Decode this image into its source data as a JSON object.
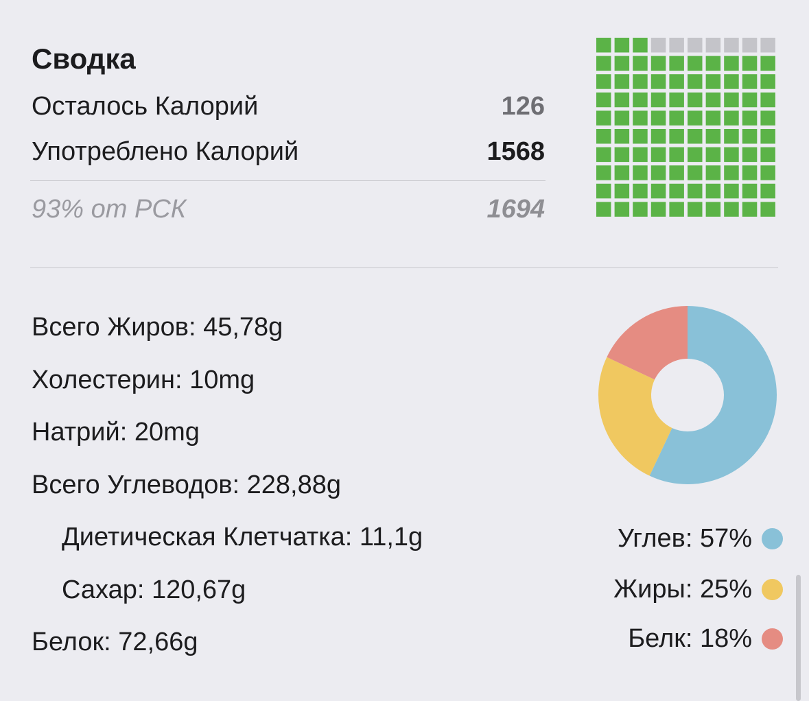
{
  "summary": {
    "title": "Сводка",
    "remaining_label": "Осталось Калорий",
    "remaining_value": "126",
    "consumed_label": "Употреблено Калорий",
    "consumed_value": "1568",
    "percent_label": "93% от РСК",
    "target_value": "1694"
  },
  "waffle": {
    "total_cells": 100,
    "filled_cells": 93,
    "filled_color": "#5bb347",
    "empty_color": "#c4c4c9"
  },
  "nutrients": [
    {
      "label": "Всего Жиров: 45,78g"
    },
    {
      "label": "Холестерин: 10mg"
    },
    {
      "label": "Натрий: 20mg"
    },
    {
      "label": "Всего Углеводов: 228,88g"
    },
    {
      "label": "Диетическая Клетчатка: 11,1g"
    },
    {
      "label": "Сахар: 120,67g"
    },
    {
      "label": "Белок: 72,66g"
    }
  ],
  "chart_data": {
    "type": "pie",
    "donut": true,
    "slices": [
      {
        "name": "Углев",
        "value": 57,
        "label": "Углев: 57%",
        "color": "#89c1d8"
      },
      {
        "name": "Жиры",
        "value": 25,
        "label": "Жиры: 25%",
        "color": "#f0c860"
      },
      {
        "name": "Белк",
        "value": 18,
        "label": "Белк: 18%",
        "color": "#e58c82"
      }
    ]
  }
}
